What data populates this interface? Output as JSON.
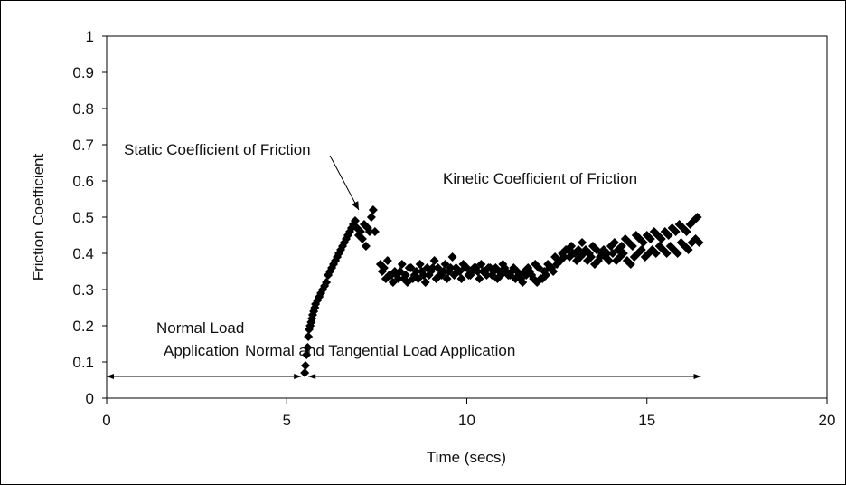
{
  "chart_data": {
    "type": "scatter",
    "title": "",
    "xlabel": "Time (secs)",
    "ylabel": "Friction Coefficient",
    "xlim": [
      0,
      20
    ],
    "ylim": [
      0,
      1
    ],
    "xticks": [
      "0",
      "5",
      "10",
      "15",
      "20"
    ],
    "yticks": [
      "0",
      "0.1",
      "0.2",
      "0.3",
      "0.4",
      "0.5",
      "0.6",
      "0.7",
      "0.8",
      "0.9",
      "1"
    ],
    "grid": false,
    "legend": "none",
    "marker": "diamond",
    "marker_color": "#000000",
    "annotations": {
      "static": "Static Coefficient of Friction",
      "kinetic": "Kinetic Coefficient of Friction",
      "normal_load_line1": "Normal Load",
      "normal_load_line2": "Application",
      "tangential": "Normal and Tangential Load Application"
    },
    "phases": [
      {
        "label": "Normal Load Application",
        "x_start": 0,
        "x_end": 5.4,
        "y": 0.06
      },
      {
        "label": "Normal and Tangential Load Application",
        "x_start": 5.6,
        "x_end": 16.5,
        "y": 0.06
      }
    ],
    "static_arrow": {
      "from": [
        6.2,
        0.67
      ],
      "to": [
        7.0,
        0.52
      ]
    },
    "series": [
      {
        "x": [
          5.5,
          5.52,
          5.55,
          5.58,
          5.6,
          5.62,
          5.65,
          5.68,
          5.7,
          5.72,
          5.75,
          5.78,
          5.8,
          5.85,
          5.9,
          5.95,
          6.0,
          6.05,
          6.1,
          6.15,
          6.2,
          6.25,
          6.3,
          6.35,
          6.4,
          6.45,
          6.5,
          6.55,
          6.6,
          6.65,
          6.7,
          6.75,
          6.8,
          6.85,
          6.9,
          6.95,
          7.0,
          7.05,
          7.1,
          7.15,
          7.2,
          7.25,
          7.3,
          7.35,
          7.4,
          7.45,
          7.6,
          7.7,
          7.8,
          7.9,
          8.0,
          8.1,
          8.2,
          8.3,
          8.4,
          8.5,
          8.6,
          8.7,
          8.8,
          8.9,
          9.0,
          9.1,
          9.2,
          9.3,
          9.4,
          9.5,
          9.6,
          9.7,
          9.8,
          9.9,
          10.0,
          10.1,
          10.2,
          10.3,
          10.4,
          10.5,
          10.6,
          10.7,
          10.8,
          10.9,
          11.0,
          11.1,
          11.2,
          11.3,
          11.4,
          11.5,
          11.6,
          11.7,
          11.8,
          11.9,
          12.0,
          12.1,
          12.2,
          12.3,
          12.4,
          12.5,
          12.6,
          12.7,
          12.8,
          12.9,
          13.0,
          13.1,
          13.2,
          13.3,
          13.4,
          13.5,
          13.6,
          13.7,
          13.8,
          13.9,
          14.0,
          14.1,
          14.2,
          14.3,
          14.4,
          14.5,
          14.6,
          14.7,
          14.8,
          14.9,
          15.0,
          15.1,
          15.2,
          15.3,
          15.4,
          15.5,
          15.6,
          15.7,
          15.8,
          15.9,
          16.0,
          16.1,
          16.2,
          16.3,
          16.4,
          7.65,
          7.75,
          7.85,
          7.95,
          8.05,
          8.15,
          8.25,
          8.35,
          8.45,
          8.55,
          8.65,
          8.75,
          8.85,
          8.95,
          9.05,
          9.15,
          9.25,
          9.35,
          9.45,
          9.55,
          9.65,
          9.75,
          9.85,
          9.95,
          10.05,
          10.15,
          10.25,
          10.35,
          10.45,
          10.55,
          10.65,
          10.75,
          10.85,
          10.95,
          11.05,
          11.15,
          11.25,
          11.35,
          11.45,
          11.55,
          11.65,
          11.75,
          11.85,
          11.95,
          12.05,
          12.15,
          12.25,
          12.35,
          12.45,
          12.55,
          12.65,
          12.75,
          12.85,
          12.95,
          13.05,
          13.15,
          13.25,
          13.35,
          13.45,
          13.55,
          13.65,
          13.75,
          13.85,
          13.95,
          14.05,
          14.15,
          14.25,
          14.35,
          14.45,
          14.55,
          14.65,
          14.75,
          14.85,
          14.95,
          15.05,
          15.15,
          15.25,
          15.35,
          15.45,
          15.55,
          15.65,
          15.75,
          15.85,
          15.95,
          16.05,
          16.15,
          16.25,
          16.35,
          16.45
        ],
        "y": [
          0.07,
          0.09,
          0.12,
          0.14,
          0.17,
          0.19,
          0.2,
          0.21,
          0.22,
          0.23,
          0.24,
          0.25,
          0.26,
          0.27,
          0.28,
          0.29,
          0.3,
          0.31,
          0.32,
          0.34,
          0.35,
          0.36,
          0.37,
          0.38,
          0.39,
          0.4,
          0.41,
          0.42,
          0.43,
          0.44,
          0.45,
          0.46,
          0.47,
          0.48,
          0.49,
          0.47,
          0.45,
          0.46,
          0.44,
          0.48,
          0.42,
          0.47,
          0.46,
          0.5,
          0.52,
          0.46,
          0.37,
          0.36,
          0.38,
          0.34,
          0.35,
          0.33,
          0.37,
          0.34,
          0.36,
          0.33,
          0.35,
          0.37,
          0.34,
          0.36,
          0.35,
          0.38,
          0.36,
          0.34,
          0.37,
          0.35,
          0.39,
          0.36,
          0.35,
          0.37,
          0.36,
          0.34,
          0.36,
          0.35,
          0.37,
          0.35,
          0.36,
          0.34,
          0.36,
          0.35,
          0.37,
          0.35,
          0.34,
          0.36,
          0.35,
          0.33,
          0.35,
          0.36,
          0.34,
          0.37,
          0.36,
          0.33,
          0.34,
          0.36,
          0.35,
          0.37,
          0.38,
          0.39,
          0.41,
          0.42,
          0.4,
          0.41,
          0.43,
          0.41,
          0.4,
          0.42,
          0.41,
          0.39,
          0.41,
          0.4,
          0.42,
          0.43,
          0.41,
          0.42,
          0.44,
          0.43,
          0.42,
          0.45,
          0.44,
          0.43,
          0.45,
          0.44,
          0.46,
          0.45,
          0.44,
          0.46,
          0.45,
          0.47,
          0.46,
          0.48,
          0.47,
          0.46,
          0.48,
          0.49,
          0.5,
          0.35,
          0.33,
          0.34,
          0.32,
          0.34,
          0.35,
          0.33,
          0.32,
          0.36,
          0.34,
          0.33,
          0.35,
          0.32,
          0.34,
          0.36,
          0.33,
          0.34,
          0.35,
          0.33,
          0.36,
          0.34,
          0.35,
          0.33,
          0.36,
          0.34,
          0.35,
          0.36,
          0.33,
          0.35,
          0.34,
          0.36,
          0.35,
          0.33,
          0.34,
          0.36,
          0.34,
          0.35,
          0.33,
          0.34,
          0.32,
          0.34,
          0.35,
          0.33,
          0.32,
          0.33,
          0.35,
          0.37,
          0.36,
          0.39,
          0.38,
          0.4,
          0.41,
          0.39,
          0.4,
          0.38,
          0.39,
          0.4,
          0.38,
          0.39,
          0.37,
          0.38,
          0.4,
          0.39,
          0.38,
          0.4,
          0.38,
          0.39,
          0.4,
          0.38,
          0.37,
          0.39,
          0.4,
          0.41,
          0.39,
          0.4,
          0.41,
          0.4,
          0.42,
          0.41,
          0.4,
          0.42,
          0.41,
          0.4,
          0.43,
          0.42,
          0.41,
          0.43,
          0.44,
          0.43
        ]
      }
    ]
  }
}
